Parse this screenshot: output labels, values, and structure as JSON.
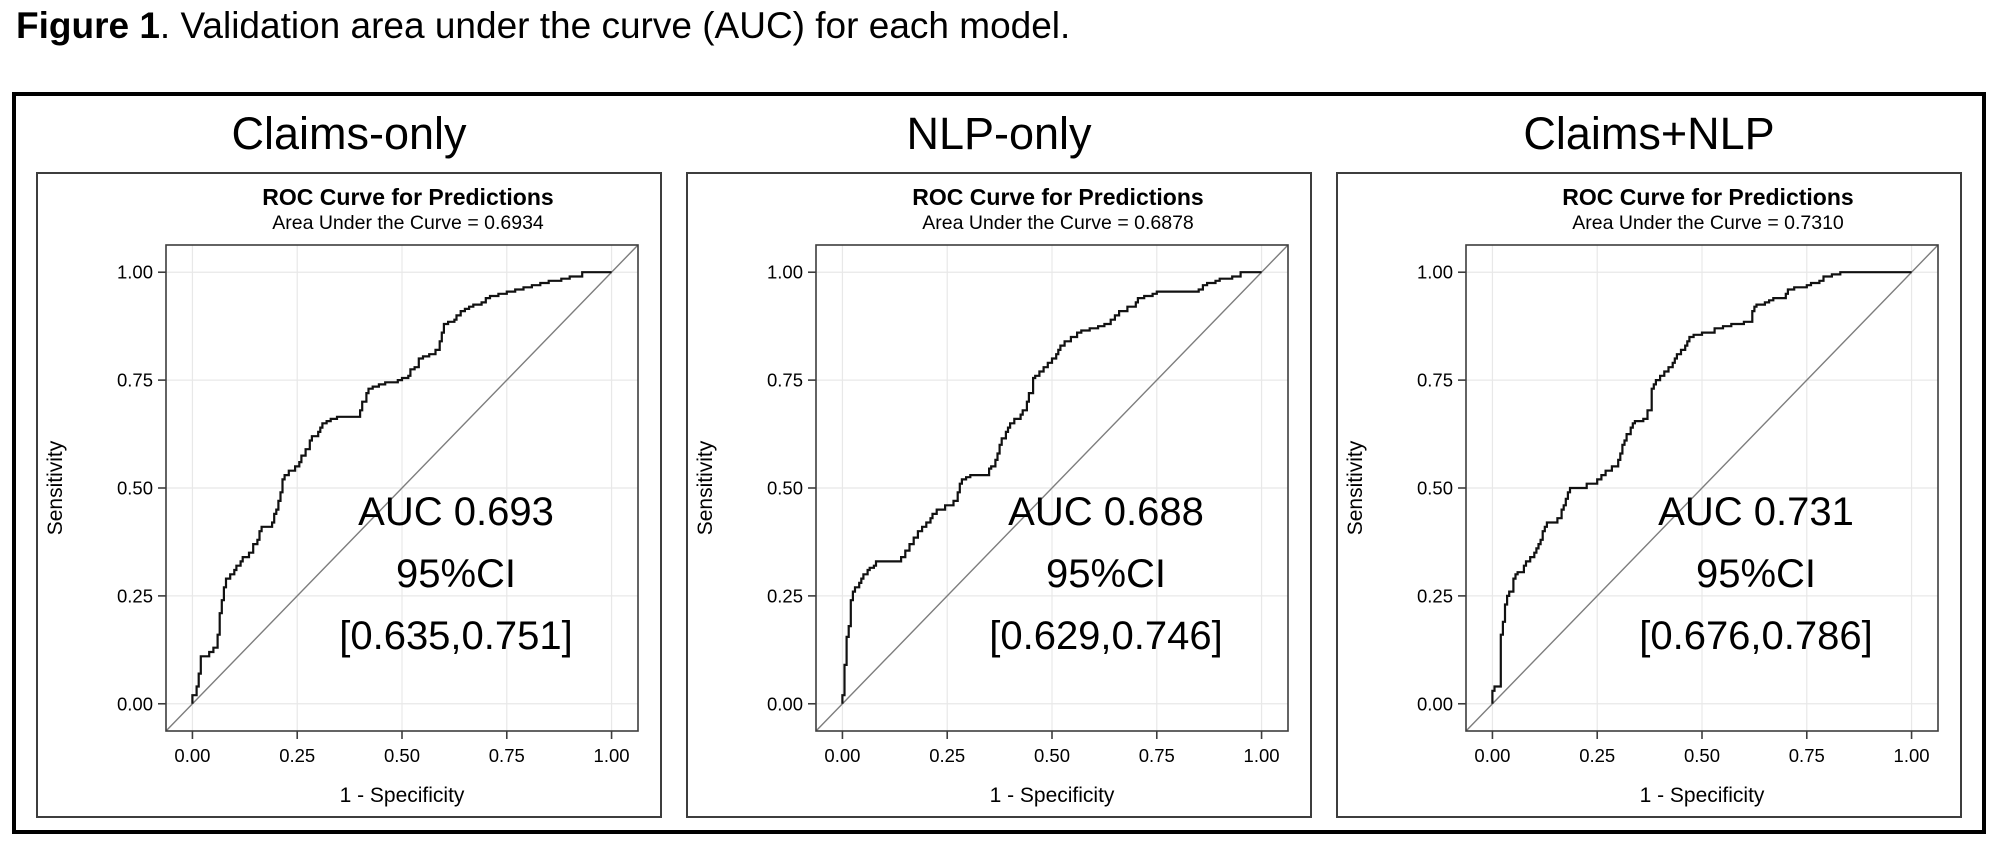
{
  "caption": {
    "bold": "Figure 1",
    "rest": ". Validation area under the curve (AUC) for each model."
  },
  "colors": {
    "text": "#000000",
    "curve": "#111111",
    "diagonal": "#7d7d7d",
    "grid": "#e8e8e8",
    "frame": "#3d3d3d",
    "outer_border": "#000000"
  },
  "panels": [
    {
      "header": "Claims-only",
      "plot_title": "ROC Curve for Predictions",
      "plot_subtitle": "Area Under the Curve = 0.6934",
      "xlabel": "1 - Specificity",
      "ylabel": "Sensitivity",
      "annotation": {
        "line1": "AUC 0.693",
        "line2": "95%CI",
        "line3": "[0.635,0.751]"
      }
    },
    {
      "header": "NLP-only",
      "plot_title": "ROC Curve for Predictions",
      "plot_subtitle": "Area Under the Curve = 0.6878",
      "xlabel": "1 - Specificity",
      "ylabel": "Sensitivity",
      "annotation": {
        "line1": "AUC 0.688",
        "line2": "95%CI",
        "line3": "[0.629,0.746]"
      }
    },
    {
      "header": "Claims+NLP",
      "plot_title": "ROC Curve for Predictions",
      "plot_subtitle": "Area Under the Curve = 0.7310",
      "xlabel": "1 - Specificity",
      "ylabel": "Sensitivity",
      "annotation": {
        "line1": "AUC 0.731",
        "line2": "95%CI",
        "line3": "[0.676,0.786]"
      }
    }
  ],
  "chart_data": [
    {
      "type": "line",
      "subtype": "roc-step",
      "model": "Claims-only",
      "title": "ROC Curve for Predictions",
      "subtitle": "Area Under the Curve = 0.6934",
      "auc": 0.6934,
      "auc_label": "AUC 0.693",
      "ci_95": [
        0.635,
        0.751
      ],
      "xlabel": "1 - Specificity",
      "ylabel": "Sensitivity",
      "xlim": [
        0,
        1
      ],
      "ylim": [
        0,
        1
      ],
      "xticks": [
        "0.00",
        "0.25",
        "0.50",
        "0.75",
        "1.00"
      ],
      "yticks": [
        "0.00",
        "0.25",
        "0.50",
        "0.75",
        "1.00"
      ],
      "grid": true,
      "diagonal_reference": true,
      "points": [
        [
          0,
          0
        ],
        [
          0.01,
          0.02
        ],
        [
          0.015,
          0.04
        ],
        [
          0.02,
          0.07
        ],
        [
          0.02,
          0.1
        ],
        [
          0.04,
          0.11
        ],
        [
          0.05,
          0.12
        ],
        [
          0.06,
          0.13
        ],
        [
          0.065,
          0.16
        ],
        [
          0.07,
          0.21
        ],
        [
          0.075,
          0.24
        ],
        [
          0.08,
          0.27
        ],
        [
          0.09,
          0.29
        ],
        [
          0.1,
          0.3
        ],
        [
          0.105,
          0.31
        ],
        [
          0.115,
          0.32
        ],
        [
          0.12,
          0.33
        ],
        [
          0.135,
          0.34
        ],
        [
          0.145,
          0.35
        ],
        [
          0.155,
          0.37
        ],
        [
          0.16,
          0.38
        ],
        [
          0.165,
          0.4
        ],
        [
          0.19,
          0.41
        ],
        [
          0.195,
          0.42
        ],
        [
          0.2,
          0.44
        ],
        [
          0.205,
          0.45
        ],
        [
          0.21,
          0.47
        ],
        [
          0.215,
          0.49
        ],
        [
          0.22,
          0.52
        ],
        [
          0.23,
          0.53
        ],
        [
          0.245,
          0.54
        ],
        [
          0.255,
          0.55
        ],
        [
          0.26,
          0.56
        ],
        [
          0.27,
          0.575
        ],
        [
          0.28,
          0.59
        ],
        [
          0.285,
          0.61
        ],
        [
          0.3,
          0.62
        ],
        [
          0.305,
          0.63
        ],
        [
          0.31,
          0.64
        ],
        [
          0.32,
          0.65
        ],
        [
          0.33,
          0.655
        ],
        [
          0.345,
          0.66
        ],
        [
          0.4,
          0.665
        ],
        [
          0.405,
          0.68
        ],
        [
          0.415,
          0.7
        ],
        [
          0.42,
          0.72
        ],
        [
          0.43,
          0.73
        ],
        [
          0.445,
          0.735
        ],
        [
          0.46,
          0.74
        ],
        [
          0.49,
          0.745
        ],
        [
          0.5,
          0.75
        ],
        [
          0.515,
          0.755
        ],
        [
          0.52,
          0.76
        ],
        [
          0.53,
          0.775
        ],
        [
          0.54,
          0.78
        ],
        [
          0.55,
          0.8
        ],
        [
          0.565,
          0.805
        ],
        [
          0.58,
          0.81
        ],
        [
          0.59,
          0.82
        ],
        [
          0.595,
          0.84
        ],
        [
          0.6,
          0.86
        ],
        [
          0.61,
          0.88
        ],
        [
          0.625,
          0.885
        ],
        [
          0.63,
          0.89
        ],
        [
          0.64,
          0.9
        ],
        [
          0.65,
          0.91
        ],
        [
          0.66,
          0.915
        ],
        [
          0.67,
          0.92
        ],
        [
          0.69,
          0.925
        ],
        [
          0.7,
          0.93
        ],
        [
          0.71,
          0.94
        ],
        [
          0.73,
          0.945
        ],
        [
          0.75,
          0.95
        ],
        [
          0.77,
          0.955
        ],
        [
          0.79,
          0.96
        ],
        [
          0.81,
          0.965
        ],
        [
          0.83,
          0.97
        ],
        [
          0.85,
          0.975
        ],
        [
          0.88,
          0.98
        ],
        [
          0.9,
          0.985
        ],
        [
          0.93,
          0.99
        ],
        [
          0.96,
          1
        ],
        [
          1,
          1
        ]
      ]
    },
    {
      "type": "line",
      "subtype": "roc-step",
      "model": "NLP-only",
      "title": "ROC Curve for Predictions",
      "subtitle": "Area Under the Curve = 0.6878",
      "auc": 0.6878,
      "auc_label": "AUC 0.688",
      "ci_95": [
        0.629,
        0.746
      ],
      "xlabel": "1 - Specificity",
      "ylabel": "Sensitivity",
      "xlim": [
        0,
        1
      ],
      "ylim": [
        0,
        1
      ],
      "xticks": [
        "0.00",
        "0.25",
        "0.50",
        "0.75",
        "1.00"
      ],
      "yticks": [
        "0.00",
        "0.25",
        "0.50",
        "0.75",
        "1.00"
      ],
      "grid": true,
      "diagonal_reference": true,
      "points": [
        [
          0,
          0
        ],
        [
          0.005,
          0.02
        ],
        [
          0.005,
          0.06
        ],
        [
          0.01,
          0.09
        ],
        [
          0.01,
          0.13
        ],
        [
          0.015,
          0.155
        ],
        [
          0.02,
          0.18
        ],
        [
          0.02,
          0.21
        ],
        [
          0.025,
          0.24
        ],
        [
          0.03,
          0.26
        ],
        [
          0.04,
          0.27
        ],
        [
          0.045,
          0.28
        ],
        [
          0.05,
          0.29
        ],
        [
          0.06,
          0.3
        ],
        [
          0.065,
          0.31
        ],
        [
          0.075,
          0.315
        ],
        [
          0.08,
          0.32
        ],
        [
          0.14,
          0.33
        ],
        [
          0.15,
          0.34
        ],
        [
          0.16,
          0.355
        ],
        [
          0.17,
          0.37
        ],
        [
          0.18,
          0.385
        ],
        [
          0.19,
          0.4
        ],
        [
          0.2,
          0.41
        ],
        [
          0.21,
          0.42
        ],
        [
          0.215,
          0.43
        ],
        [
          0.225,
          0.44
        ],
        [
          0.245,
          0.45
        ],
        [
          0.265,
          0.46
        ],
        [
          0.275,
          0.47
        ],
        [
          0.28,
          0.49
        ],
        [
          0.285,
          0.51
        ],
        [
          0.295,
          0.52
        ],
        [
          0.305,
          0.525
        ],
        [
          0.35,
          0.53
        ],
        [
          0.355,
          0.545
        ],
        [
          0.365,
          0.55
        ],
        [
          0.37,
          0.565
        ],
        [
          0.375,
          0.58
        ],
        [
          0.38,
          0.6
        ],
        [
          0.39,
          0.615
        ],
        [
          0.395,
          0.63
        ],
        [
          0.4,
          0.64
        ],
        [
          0.41,
          0.65
        ],
        [
          0.425,
          0.66
        ],
        [
          0.43,
          0.67
        ],
        [
          0.44,
          0.68
        ],
        [
          0.445,
          0.7
        ],
        [
          0.455,
          0.72
        ],
        [
          0.46,
          0.755
        ],
        [
          0.47,
          0.76
        ],
        [
          0.48,
          0.77
        ],
        [
          0.49,
          0.78
        ],
        [
          0.5,
          0.79
        ],
        [
          0.51,
          0.8
        ],
        [
          0.515,
          0.81
        ],
        [
          0.52,
          0.82
        ],
        [
          0.53,
          0.83
        ],
        [
          0.545,
          0.84
        ],
        [
          0.56,
          0.85
        ],
        [
          0.57,
          0.86
        ],
        [
          0.59,
          0.865
        ],
        [
          0.61,
          0.87
        ],
        [
          0.625,
          0.875
        ],
        [
          0.64,
          0.88
        ],
        [
          0.65,
          0.89
        ],
        [
          0.66,
          0.9
        ],
        [
          0.68,
          0.91
        ],
        [
          0.7,
          0.92
        ],
        [
          0.705,
          0.93
        ],
        [
          0.72,
          0.94
        ],
        [
          0.74,
          0.945
        ],
        [
          0.75,
          0.95
        ],
        [
          0.85,
          0.955
        ],
        [
          0.86,
          0.96
        ],
        [
          0.87,
          0.97
        ],
        [
          0.89,
          0.975
        ],
        [
          0.9,
          0.98
        ],
        [
          0.93,
          0.985
        ],
        [
          0.95,
          0.99
        ],
        [
          0.97,
          1
        ],
        [
          1,
          1
        ]
      ]
    },
    {
      "type": "line",
      "subtype": "roc-step",
      "model": "Claims+NLP",
      "title": "ROC Curve for Predictions",
      "subtitle": "Area Under the Curve = 0.7310",
      "auc": 0.731,
      "auc_label": "AUC 0.731",
      "ci_95": [
        0.676,
        0.786
      ],
      "xlabel": "1 - Specificity",
      "ylabel": "Sensitivity",
      "xlim": [
        0,
        1
      ],
      "ylim": [
        0,
        1
      ],
      "xticks": [
        "0.00",
        "0.25",
        "0.50",
        "0.75",
        "1.00"
      ],
      "yticks": [
        "0.00",
        "0.25",
        "0.50",
        "0.75",
        "1.00"
      ],
      "grid": true,
      "diagonal_reference": true,
      "points": [
        [
          0,
          0
        ],
        [
          0.005,
          0.03
        ],
        [
          0.02,
          0.04
        ],
        [
          0.02,
          0.13
        ],
        [
          0.025,
          0.16
        ],
        [
          0.03,
          0.19
        ],
        [
          0.03,
          0.21
        ],
        [
          0.035,
          0.23
        ],
        [
          0.04,
          0.25
        ],
        [
          0.05,
          0.26
        ],
        [
          0.05,
          0.28
        ],
        [
          0.055,
          0.29
        ],
        [
          0.06,
          0.3
        ],
        [
          0.075,
          0.305
        ],
        [
          0.08,
          0.32
        ],
        [
          0.09,
          0.33
        ],
        [
          0.1,
          0.34
        ],
        [
          0.105,
          0.35
        ],
        [
          0.11,
          0.36
        ],
        [
          0.115,
          0.37
        ],
        [
          0.12,
          0.38
        ],
        [
          0.125,
          0.4
        ],
        [
          0.13,
          0.41
        ],
        [
          0.155,
          0.42
        ],
        [
          0.165,
          0.43
        ],
        [
          0.17,
          0.45
        ],
        [
          0.175,
          0.46
        ],
        [
          0.18,
          0.475
        ],
        [
          0.185,
          0.49
        ],
        [
          0.225,
          0.5
        ],
        [
          0.25,
          0.51
        ],
        [
          0.26,
          0.52
        ],
        [
          0.27,
          0.53
        ],
        [
          0.285,
          0.54
        ],
        [
          0.3,
          0.55
        ],
        [
          0.305,
          0.565
        ],
        [
          0.31,
          0.58
        ],
        [
          0.315,
          0.6
        ],
        [
          0.32,
          0.61
        ],
        [
          0.33,
          0.625
        ],
        [
          0.335,
          0.64
        ],
        [
          0.34,
          0.65
        ],
        [
          0.36,
          0.655
        ],
        [
          0.37,
          0.66
        ],
        [
          0.38,
          0.68
        ],
        [
          0.38,
          0.72
        ],
        [
          0.385,
          0.73
        ],
        [
          0.39,
          0.74
        ],
        [
          0.4,
          0.75
        ],
        [
          0.41,
          0.76
        ],
        [
          0.42,
          0.77
        ],
        [
          0.43,
          0.78
        ],
        [
          0.435,
          0.79
        ],
        [
          0.44,
          0.8
        ],
        [
          0.45,
          0.81
        ],
        [
          0.46,
          0.82
        ],
        [
          0.465,
          0.83
        ],
        [
          0.47,
          0.84
        ],
        [
          0.48,
          0.85
        ],
        [
          0.5,
          0.855
        ],
        [
          0.53,
          0.86
        ],
        [
          0.55,
          0.87
        ],
        [
          0.57,
          0.875
        ],
        [
          0.6,
          0.88
        ],
        [
          0.62,
          0.885
        ],
        [
          0.625,
          0.91
        ],
        [
          0.63,
          0.92
        ],
        [
          0.65,
          0.925
        ],
        [
          0.66,
          0.93
        ],
        [
          0.67,
          0.935
        ],
        [
          0.7,
          0.94
        ],
        [
          0.705,
          0.95
        ],
        [
          0.72,
          0.96
        ],
        [
          0.75,
          0.965
        ],
        [
          0.76,
          0.97
        ],
        [
          0.78,
          0.975
        ],
        [
          0.79,
          0.98
        ],
        [
          0.81,
          0.99
        ],
        [
          0.83,
          0.995
        ],
        [
          0.87,
          1
        ],
        [
          1,
          1
        ]
      ]
    }
  ]
}
